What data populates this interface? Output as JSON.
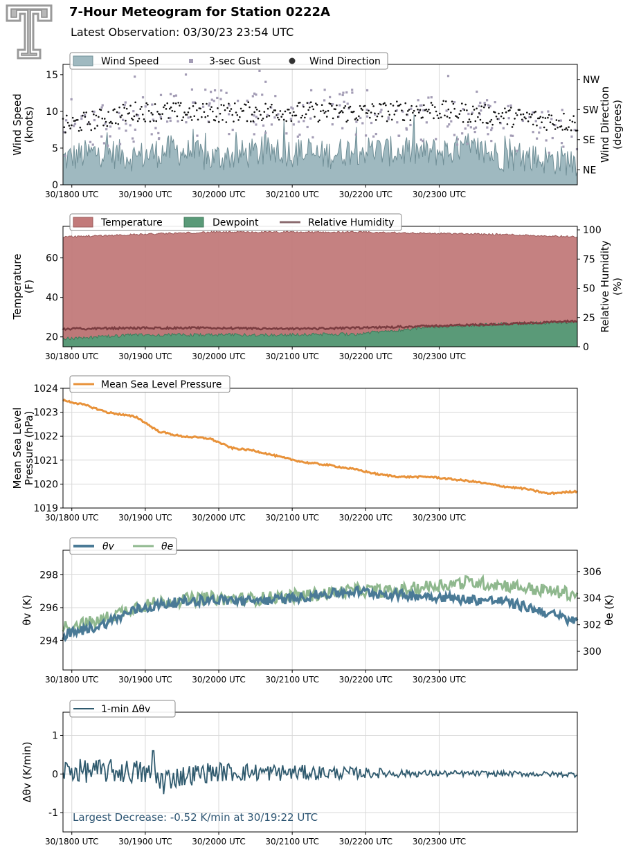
{
  "header": {
    "title": "7-Hour Meteogram for Station 0222A",
    "subtitle": "Latest Observation: 03/30/23 23:54 UTC",
    "logo": "texas-tech-double-t-logo"
  },
  "x_tick_labels": [
    "30/1800 UTC",
    "30/1900 UTC",
    "30/2000 UTC",
    "30/2100 UTC",
    "30/2200 UTC",
    "30/2300 UTC"
  ],
  "colors": {
    "wind_fill": "#9fb9c0",
    "wind_line": "#6f8e96",
    "gust": "#a39cb5",
    "direction": "#111111",
    "temperature": "#c27a7a",
    "dewpoint": "#5a9a78",
    "rh": "#7a3c40",
    "pressure": "#e8923a",
    "theta_v": "#4a7a96",
    "theta_e": "#8fb88e",
    "delta": "#2f5a6e",
    "annotation": "#2e5673",
    "grid": "#d8d8d8"
  },
  "chart_data": [
    {
      "type": "area",
      "panel": "wind",
      "legend": [
        "Wind Speed",
        "3-sec Gust",
        "Wind Direction"
      ],
      "ylabel": "Wind Speed (knots)",
      "ylim": [
        0,
        16.4
      ],
      "yticks": [
        0,
        5,
        10,
        15
      ],
      "y2label": "Wind Direction (degrees)",
      "y2ticks": [
        "NE",
        "SE",
        "SW",
        "NW"
      ],
      "y2lim": [
        0,
        360
      ],
      "series": [
        {
          "name": "Wind Speed",
          "x": [
            0,
            0.5,
            1,
            1.5,
            2,
            2.5,
            3,
            3.5,
            4,
            4.5,
            5,
            5.5,
            6,
            6.5,
            7
          ],
          "values": [
            3.5,
            4.5,
            3.8,
            4.8,
            3.6,
            4.2,
            4.6,
            4.0,
            4.8,
            4.5,
            4.4,
            4.8,
            3.9,
            3.5,
            3.2
          ]
        },
        {
          "name": "3-sec Gust",
          "x": [
            0,
            1,
            2,
            3,
            4,
            5,
            6,
            7
          ],
          "values": [
            7,
            9,
            10,
            9.5,
            10,
            9,
            8,
            7
          ]
        },
        {
          "name": "Wind Direction",
          "x": [
            0,
            1,
            2,
            3,
            4,
            5,
            6,
            7
          ],
          "values": [
            175,
            220,
            215,
            220,
            215,
            225,
            205,
            185
          ]
        }
      ]
    },
    {
      "type": "area",
      "panel": "thermo",
      "legend": [
        "Temperature",
        "Dewpoint",
        "Relative Humidity"
      ],
      "ylabel": "Temperature (F)",
      "ylim": [
        15,
        76
      ],
      "yticks": [
        20,
        40,
        60
      ],
      "y2label": "Relative Humidity (%)",
      "y2lim": [
        0,
        103
      ],
      "y2ticks": [
        0,
        25,
        50,
        75,
        100
      ],
      "series": [
        {
          "name": "Temperature",
          "x": [
            0,
            1,
            2,
            3,
            4,
            5,
            6,
            7
          ],
          "values": [
            24,
            24.5,
            24.5,
            24,
            24.5,
            25.5,
            26.5,
            28
          ]
        },
        {
          "name": "Dewpoint",
          "x": [
            0,
            1,
            2,
            3,
            4,
            5,
            6,
            7
          ],
          "values": [
            19,
            21,
            21,
            21,
            21.5,
            25,
            26.5,
            27.5
          ]
        },
        {
          "name": "Relative Humidity",
          "x": [
            0,
            0.5,
            1,
            2,
            3,
            4,
            5,
            6,
            7
          ],
          "values": [
            94,
            95,
            96,
            98,
            98,
            98,
            97,
            96,
            94
          ]
        }
      ]
    },
    {
      "type": "line",
      "panel": "pressure",
      "legend": [
        "Mean Sea Level Pressure"
      ],
      "ylabel": "Mean Sea Level Pressure (hPa)",
      "ylim": [
        1019,
        1024
      ],
      "yticks": [
        1019,
        1020,
        1021,
        1022,
        1023,
        1024
      ],
      "series": [
        {
          "name": "Mean Sea Level Pressure",
          "x": [
            0,
            0.3,
            0.6,
            1,
            1.3,
            1.6,
            2,
            2.3,
            2.6,
            3,
            3.3,
            3.6,
            4,
            4.3,
            4.6,
            5,
            5.3,
            5.6,
            6,
            6.3,
            6.6,
            7
          ],
          "values": [
            1023.5,
            1023.3,
            1023.0,
            1022.8,
            1022.2,
            1022.0,
            1021.9,
            1021.5,
            1021.4,
            1021.1,
            1020.9,
            1020.8,
            1020.6,
            1020.4,
            1020.3,
            1020.3,
            1020.2,
            1020.1,
            1019.9,
            1019.8,
            1019.6,
            1019.7
          ]
        }
      ]
    },
    {
      "type": "line",
      "panel": "theta",
      "legend": [
        "θv",
        "θe"
      ],
      "ylabel": "θv (K)",
      "ylim": [
        292.2,
        299.5
      ],
      "yticks": [
        294,
        296,
        298
      ],
      "y2label": "θe (K)",
      "y2lim": [
        298.6,
        307.6
      ],
      "y2ticks": [
        300,
        302,
        304,
        306
      ],
      "series": [
        {
          "name": "θv",
          "x": [
            0,
            0.5,
            1,
            1.5,
            2,
            2.5,
            3,
            3.5,
            4,
            4.5,
            5,
            5.5,
            6,
            6.5,
            7
          ],
          "values": [
            294.3,
            294.9,
            295.9,
            296.3,
            296.5,
            296.4,
            296.5,
            296.8,
            297.0,
            296.8,
            296.7,
            296.5,
            296.4,
            295.8,
            295.1
          ]
        },
        {
          "name": "θe",
          "x": [
            0,
            0.5,
            1,
            1.5,
            2,
            2.5,
            3,
            3.5,
            4,
            4.5,
            5,
            5.5,
            6,
            6.5,
            7
          ],
          "values": [
            301.8,
            302.3,
            303.4,
            303.8,
            304.0,
            303.9,
            304.1,
            304.3,
            304.6,
            304.5,
            304.9,
            305.2,
            305.0,
            304.6,
            304.3
          ]
        }
      ]
    },
    {
      "type": "line",
      "panel": "delta",
      "legend": [
        "1-min Δθv"
      ],
      "ylabel": "Δθv (K/min)",
      "ylim": [
        -1.5,
        1.6
      ],
      "yticks": [
        -1,
        0,
        1
      ],
      "annotation": "Largest Decrease: -0.52 K/min at 30/19:22 UTC",
      "series": [
        {
          "name": "1-min Δθv",
          "x": [
            0,
            1,
            1.37,
            2,
            3,
            4,
            5,
            6,
            7
          ],
          "values": [
            0.35,
            0.25,
            -0.52,
            0.2,
            0.15,
            0.1,
            0.05,
            0.03,
            -0.05
          ],
          "amplitude": [
            0.3,
            0.32,
            0.3,
            0.26,
            0.22,
            0.15,
            0.08,
            0.07,
            0.07
          ]
        }
      ]
    }
  ]
}
